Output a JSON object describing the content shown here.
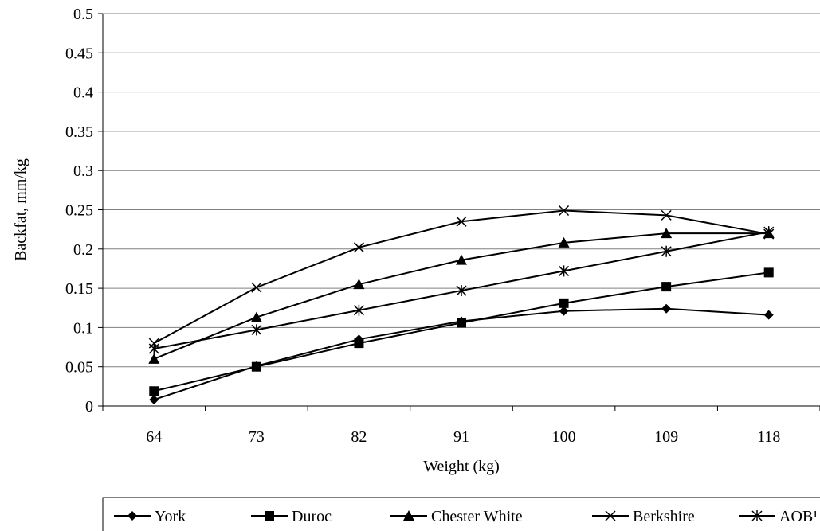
{
  "chart_data": {
    "type": "line",
    "title": "",
    "xlabel": "Weight (kg)",
    "ylabel": "Backfat, mm/kg",
    "x": [
      "64",
      "73",
      "82",
      "91",
      "100",
      "109",
      "118"
    ],
    "ylim": [
      0,
      0.5
    ],
    "yticks": [
      "0",
      "0.05",
      "0.1",
      "0.15",
      "0.2",
      "0.25",
      "0.3",
      "0.35",
      "0.4",
      "0.45",
      "0.5"
    ],
    "grid": "horizontal",
    "legend": "bottom",
    "series": [
      {
        "name": "York",
        "marker": "diamond",
        "values": [
          0.008,
          0.051,
          0.085,
          0.108,
          0.121,
          0.124,
          0.116
        ]
      },
      {
        "name": "Duroc",
        "marker": "square",
        "values": [
          0.019,
          0.05,
          0.08,
          0.106,
          0.131,
          0.152,
          0.17
        ]
      },
      {
        "name": "Chester White",
        "marker": "triangle",
        "values": [
          0.06,
          0.113,
          0.155,
          0.186,
          0.208,
          0.22,
          0.22
        ]
      },
      {
        "name": "Berkshire",
        "marker": "x",
        "values": [
          0.08,
          0.151,
          0.202,
          0.235,
          0.249,
          0.243,
          0.219
        ]
      },
      {
        "name": "AOB¹",
        "marker": "asterisk",
        "values": [
          0.073,
          0.097,
          0.122,
          0.147,
          0.172,
          0.197,
          0.222
        ]
      }
    ]
  }
}
